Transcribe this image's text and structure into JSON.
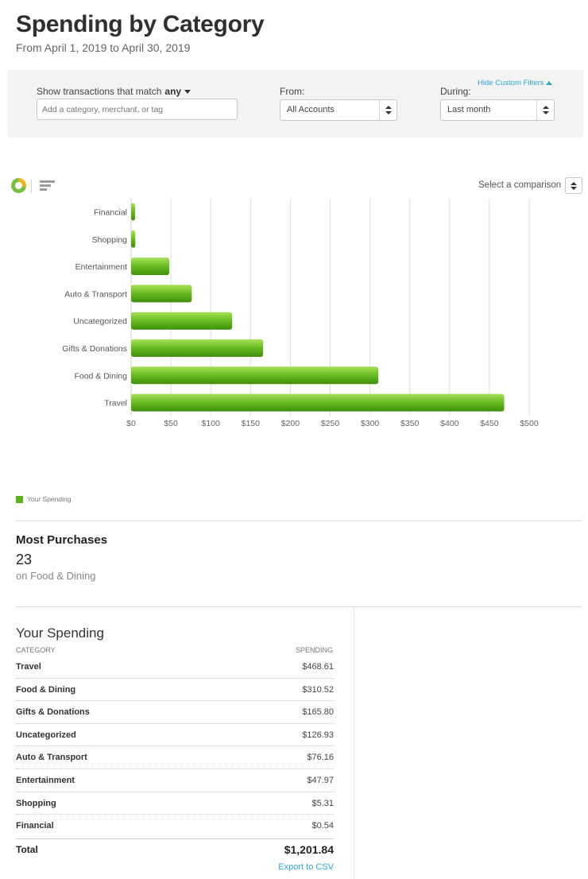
{
  "header": {
    "title": "Spending by Category",
    "subtitle": "From April 1, 2019 to April 30, 2019"
  },
  "filters": {
    "match_label": "Show transactions that match",
    "match_value": "any",
    "search_placeholder": "Add a category, merchant, or tag",
    "from_label": "From:",
    "from_value": "All Accounts",
    "during_label": "During:",
    "during_value": "Last month",
    "hide_filters_label": "Hide Custom Filters"
  },
  "chart_controls": {
    "comparison_label": "Select a comparison"
  },
  "chart_data": {
    "type": "bar",
    "orientation": "horizontal",
    "categories": [
      "Financial",
      "Shopping",
      "Entertainment",
      "Auto & Transport",
      "Uncategorized",
      "Gifts & Donations",
      "Food & Dining",
      "Travel"
    ],
    "series": [
      {
        "name": "Your Spending",
        "values": [
          0.54,
          5.31,
          47.97,
          76.16,
          126.93,
          165.8,
          310.52,
          468.61
        ],
        "color": "#5cb41c"
      }
    ],
    "x_ticks": [
      "$0",
      "$50",
      "$100",
      "$150",
      "$200",
      "$250",
      "$300",
      "$350",
      "$400",
      "$450",
      "$500"
    ],
    "xlim": [
      0,
      500
    ],
    "grid": true,
    "legend_position": "bottom-left"
  },
  "legend": {
    "label": "Your Spending"
  },
  "most_purchases": {
    "title": "Most Purchases",
    "count": "23",
    "subtitle": "on Food & Dining"
  },
  "spending_table": {
    "title": "Your Spending",
    "col_category": "CATEGORY",
    "col_spending": "SPENDING",
    "rows": [
      {
        "category": "Travel",
        "amount": "$468.61"
      },
      {
        "category": "Food & Dining",
        "amount": "$310.52"
      },
      {
        "category": "Gifts & Donations",
        "amount": "$165.80"
      },
      {
        "category": "Uncategorized",
        "amount": "$126.93"
      },
      {
        "category": "Auto & Transport",
        "amount": "$76.16"
      },
      {
        "category": "Entertainment",
        "amount": "$47.97"
      },
      {
        "category": "Shopping",
        "amount": "$5.31"
      },
      {
        "category": "Financial",
        "amount": "$0.54"
      }
    ],
    "total_label": "Total",
    "total_amount": "$1,201.84",
    "export_label": "Export to CSV"
  }
}
